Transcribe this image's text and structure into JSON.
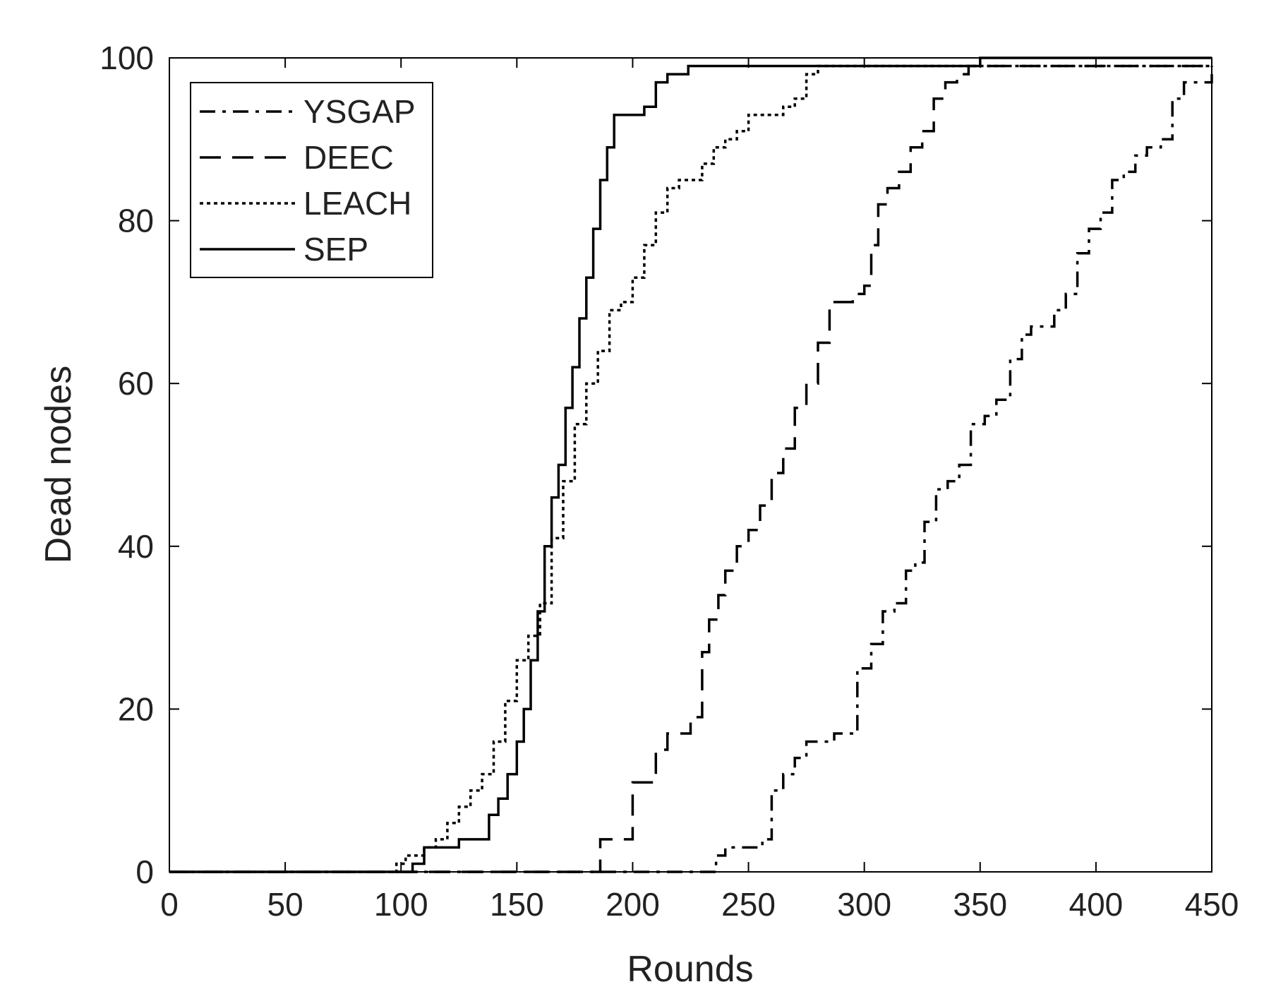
{
  "chart_data": {
    "type": "line",
    "title": "",
    "xlabel": "Rounds",
    "ylabel": "Dead nodes",
    "xlim": [
      0,
      450
    ],
    "ylim": [
      0,
      100
    ],
    "xticks": [
      0,
      50,
      100,
      150,
      200,
      250,
      300,
      350,
      400,
      450
    ],
    "yticks": [
      0,
      20,
      40,
      60,
      80,
      100
    ],
    "grid": false,
    "legend_position": "top-left",
    "series": [
      {
        "name": "YSGAP",
        "style": "dashdot",
        "color": "#000000",
        "x": [
          0,
          232,
          236,
          240,
          250,
          256,
          260,
          265,
          270,
          275,
          280,
          287,
          293,
          297,
          303,
          308,
          313,
          318,
          322,
          326,
          331,
          336,
          341,
          346,
          352,
          357,
          363,
          368,
          372,
          377,
          382,
          387,
          392,
          397,
          402,
          407,
          412,
          417,
          422,
          428,
          433,
          438,
          444,
          450
        ],
        "y": [
          0,
          0,
          2,
          3,
          3,
          4,
          10,
          12,
          14,
          16,
          16,
          17,
          17,
          25,
          28,
          32,
          33,
          37,
          38,
          43,
          47,
          48,
          50,
          55,
          56,
          58,
          63,
          66,
          67,
          67,
          69,
          71,
          76,
          79,
          81,
          85,
          86,
          88,
          89,
          90,
          95,
          97,
          97,
          99
        ]
      },
      {
        "name": "DEEC",
        "style": "dashed",
        "color": "#000000",
        "x": [
          0,
          183,
          186,
          195,
          200,
          205,
          210,
          215,
          220,
          225,
          230,
          233,
          237,
          240,
          245,
          250,
          255,
          260,
          265,
          270,
          275,
          280,
          285,
          290,
          295,
          300,
          303,
          306,
          310,
          315,
          320,
          325,
          330,
          335,
          340,
          345,
          350,
          360,
          400,
          450
        ],
        "y": [
          0,
          0,
          4,
          4,
          11,
          11,
          15,
          17,
          17,
          19,
          27,
          31,
          34,
          37,
          40,
          42,
          45,
          49,
          52,
          57,
          60,
          65,
          70,
          70,
          71,
          72,
          77,
          82,
          84,
          86,
          89,
          91,
          95,
          97,
          98,
          99,
          99,
          99,
          99,
          99
        ]
      },
      {
        "name": "LEACH",
        "style": "dotted",
        "color": "#000000",
        "x": [
          0,
          85,
          98,
          102,
          110,
          115,
          120,
          125,
          130,
          135,
          140,
          145,
          150,
          155,
          160,
          165,
          170,
          175,
          180,
          185,
          190,
          195,
          200,
          205,
          210,
          215,
          220,
          225,
          230,
          235,
          240,
          245,
          250,
          260,
          265,
          270,
          275,
          280,
          300,
          350,
          400,
          450
        ],
        "y": [
          0,
          0,
          1,
          2,
          3,
          4,
          6,
          8,
          10,
          12,
          16,
          21,
          26,
          29,
          33,
          41,
          48,
          55,
          60,
          64,
          69,
          70,
          73,
          77,
          81,
          84,
          85,
          85,
          87,
          89,
          90,
          91,
          93,
          93,
          94,
          95,
          98,
          99,
          99,
          99,
          99,
          99
        ]
      },
      {
        "name": "SEP",
        "style": "solid",
        "color": "#000000",
        "x": [
          0,
          100,
          105,
          110,
          120,
          125,
          133,
          138,
          142,
          146,
          150,
          153,
          156,
          159,
          162,
          165,
          168,
          171,
          174,
          177,
          180,
          183,
          186,
          189,
          192,
          195,
          200,
          205,
          210,
          215,
          220,
          224,
          230,
          240,
          260,
          300,
          349,
          350,
          400,
          450
        ],
        "y": [
          0,
          0,
          1,
          3,
          3,
          4,
          4,
          7,
          9,
          12,
          16,
          20,
          26,
          32,
          40,
          46,
          50,
          57,
          62,
          68,
          73,
          79,
          85,
          89,
          93,
          93,
          93,
          94,
          97,
          98,
          98,
          99,
          99,
          99,
          99,
          99,
          99,
          100,
          100,
          100
        ]
      }
    ]
  }
}
